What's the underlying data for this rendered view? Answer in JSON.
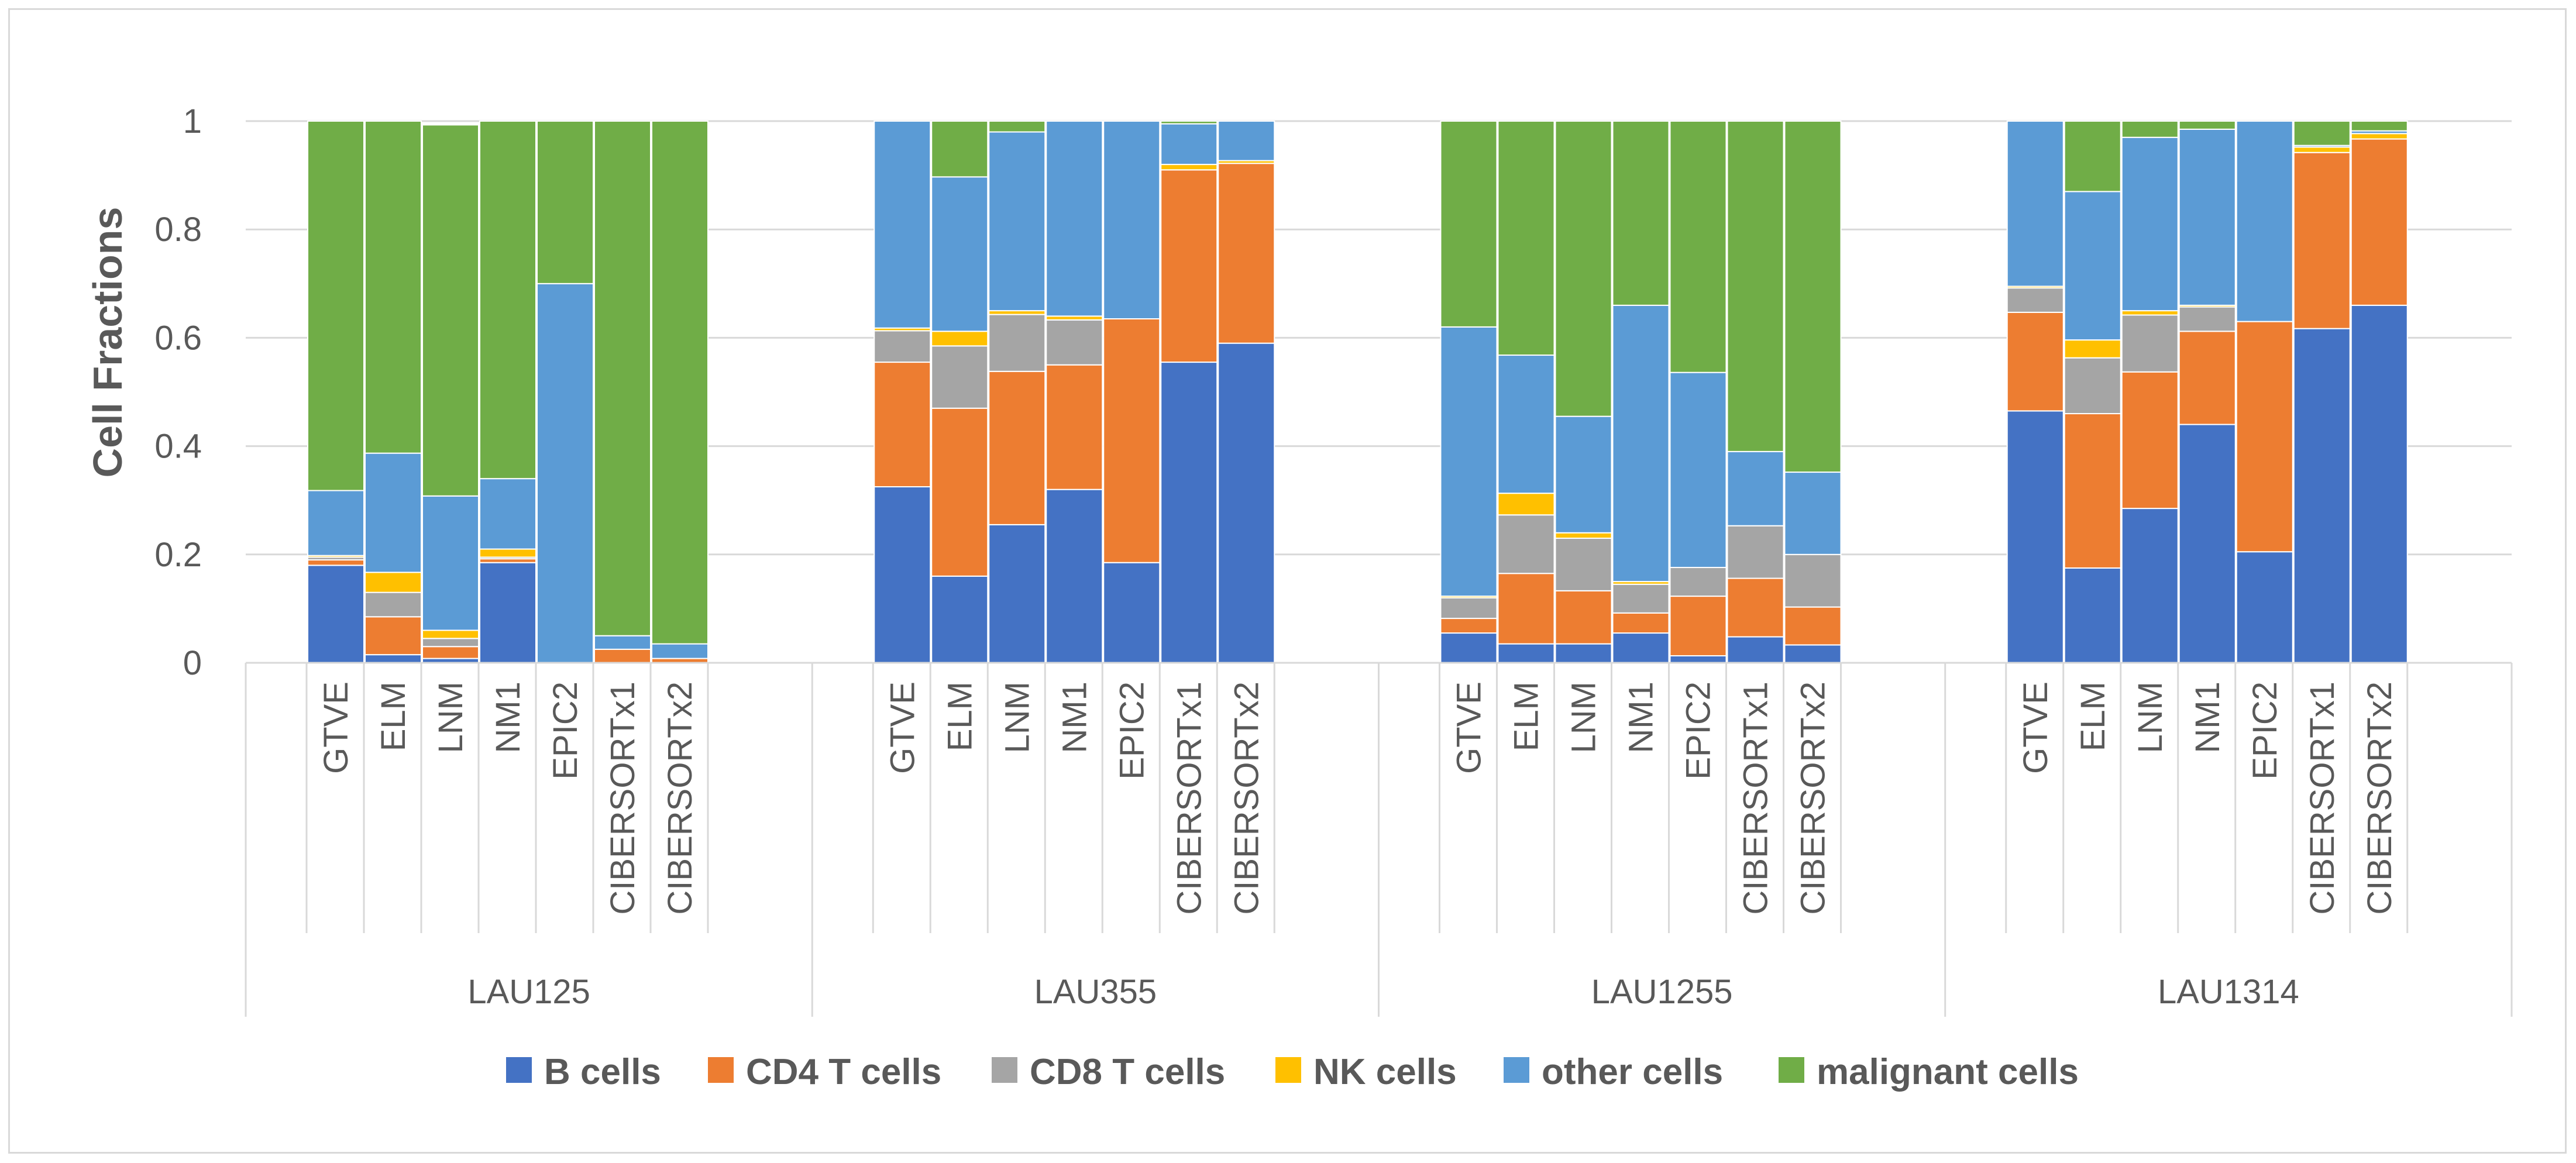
{
  "chart_data": {
    "type": "bar",
    "stacked": true,
    "ylabel": "Cell Fractions",
    "ylim": [
      0,
      1
    ],
    "yticks": [
      "0",
      "0.2",
      "0.4",
      "0.6",
      "0.8",
      "1"
    ],
    "grid": true,
    "legend_position": "bottom",
    "groups": [
      "LAU125",
      "LAU355",
      "LAU1255",
      "LAU1314"
    ],
    "methods": [
      "GTVE",
      "ELM",
      "LNM",
      "NM1",
      "EPIC2",
      "CIBERSORTx1",
      "CIBERSORTx2"
    ],
    "series": [
      {
        "name": "B cells",
        "color": "#4472c4",
        "values": [
          [
            0.18,
            0.015,
            0.008,
            0.185,
            0.0,
            0.0,
            0.0
          ],
          [
            0.325,
            0.16,
            0.255,
            0.32,
            0.185,
            0.555,
            0.59
          ],
          [
            0.055,
            0.035,
            0.035,
            0.055,
            0.013,
            0.048,
            0.033
          ],
          [
            0.465,
            0.175,
            0.285,
            0.44,
            0.205,
            0.617,
            0.66
          ]
        ]
      },
      {
        "name": "CD4 T cells",
        "color": "#ed7d31",
        "values": [
          [
            0.01,
            0.07,
            0.022,
            0.007,
            0.0,
            0.025,
            0.008
          ],
          [
            0.23,
            0.31,
            0.283,
            0.23,
            0.45,
            0.355,
            0.332
          ],
          [
            0.027,
            0.13,
            0.098,
            0.037,
            0.11,
            0.108,
            0.07
          ],
          [
            0.182,
            0.285,
            0.252,
            0.172,
            0.425,
            0.325,
            0.307
          ]
        ]
      },
      {
        "name": "CD8 T cells",
        "color": "#a5a5a5",
        "values": [
          [
            0.005,
            0.045,
            0.015,
            0.003,
            0.0,
            0.0,
            0.0
          ],
          [
            0.058,
            0.115,
            0.105,
            0.083,
            0.0,
            0.0,
            0.0
          ],
          [
            0.038,
            0.108,
            0.097,
            0.053,
            0.053,
            0.097,
            0.097
          ],
          [
            0.045,
            0.103,
            0.105,
            0.045,
            0.0,
            0.0,
            0.0
          ]
        ]
      },
      {
        "name": "NK cells",
        "color": "#ffc000",
        "values": [
          [
            0.003,
            0.037,
            0.015,
            0.015,
            0.0,
            0.0,
            0.0
          ],
          [
            0.005,
            0.027,
            0.007,
            0.007,
            0.0,
            0.01,
            0.005
          ],
          [
            0.003,
            0.04,
            0.01,
            0.005,
            0.0,
            0.0,
            0.0
          ],
          [
            0.003,
            0.033,
            0.008,
            0.003,
            0.0,
            0.01,
            0.01
          ]
        ]
      },
      {
        "name": "other cells",
        "color": "#5b9bd5",
        "values": [
          [
            0.12,
            0.22,
            0.248,
            0.13,
            0.7,
            0.025,
            0.027
          ],
          [
            0.382,
            0.285,
            0.33,
            0.36,
            0.365,
            0.075,
            0.073
          ],
          [
            0.497,
            0.255,
            0.215,
            0.51,
            0.36,
            0.137,
            0.152
          ],
          [
            0.305,
            0.274,
            0.32,
            0.325,
            0.37,
            0.003,
            0.005
          ]
        ]
      },
      {
        "name": "malignant cells",
        "color": "#70ad47",
        "values": [
          [
            0.682,
            0.613,
            0.685,
            0.66,
            0.3,
            0.95,
            0.965
          ],
          [
            0.0,
            0.103,
            0.02,
            0.0,
            0.0,
            0.005,
            0.0
          ],
          [
            0.38,
            0.432,
            0.545,
            0.34,
            0.464,
            0.61,
            0.648
          ],
          [
            0.0,
            0.13,
            0.03,
            0.015,
            0.0,
            0.045,
            0.018
          ]
        ]
      }
    ]
  }
}
